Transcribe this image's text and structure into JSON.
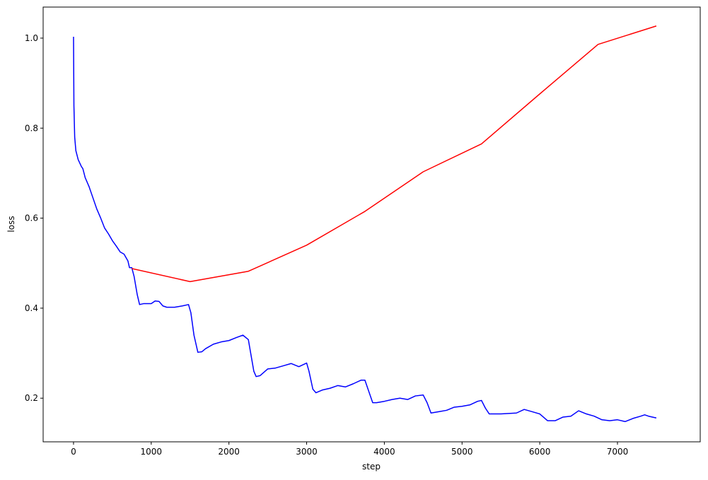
{
  "chart_data": {
    "type": "line",
    "xlabel": "step",
    "ylabel": "loss",
    "xlim": [
      -391,
      8065
    ],
    "ylim": [
      0.103,
      1.069
    ],
    "xticks": [
      0,
      1000,
      2000,
      3000,
      4000,
      5000,
      6000,
      7000
    ],
    "yticks": [
      0.2,
      0.4,
      0.6,
      0.8,
      {
        "value": 1,
        "label": "1.0"
      }
    ],
    "grid": false,
    "series": [
      {
        "color": "#0000ff",
        "x": [
          0,
          5,
          15,
          30,
          60,
          100,
          120,
          150,
          200,
          250,
          300,
          350,
          400,
          450,
          500,
          550,
          600,
          650,
          700,
          720,
          750,
          780,
          820,
          850,
          900,
          1000,
          1050,
          1100,
          1150,
          1200,
          1300,
          1400,
          1480,
          1510,
          1550,
          1600,
          1650,
          1700,
          1800,
          1900,
          2000,
          2100,
          2180,
          2250,
          2280,
          2320,
          2350,
          2400,
          2500,
          2600,
          2700,
          2800,
          2900,
          3000,
          3030,
          3080,
          3120,
          3200,
          3300,
          3400,
          3500,
          3600,
          3700,
          3750,
          3800,
          3850,
          3900,
          4000,
          4100,
          4200,
          4300,
          4400,
          4500,
          4550,
          4600,
          4700,
          4800,
          4900,
          5000,
          5100,
          5200,
          5250,
          5300,
          5350,
          5500,
          5700,
          5800,
          5900,
          6000,
          6100,
          6200,
          6300,
          6400,
          6500,
          6600,
          6700,
          6800,
          6900,
          7000,
          7100,
          7200,
          7300,
          7350,
          7400,
          7500
        ],
        "values": [
          1.003,
          0.85,
          0.78,
          0.75,
          0.73,
          0.715,
          0.71,
          0.69,
          0.67,
          0.645,
          0.62,
          0.6,
          0.578,
          0.565,
          0.55,
          0.538,
          0.525,
          0.52,
          0.505,
          0.49,
          0.49,
          0.47,
          0.43,
          0.408,
          0.41,
          0.41,
          0.416,
          0.415,
          0.405,
          0.402,
          0.402,
          0.405,
          0.408,
          0.39,
          0.34,
          0.302,
          0.303,
          0.31,
          0.32,
          0.325,
          0.328,
          0.335,
          0.34,
          0.33,
          0.3,
          0.26,
          0.248,
          0.25,
          0.265,
          0.267,
          0.272,
          0.277,
          0.27,
          0.278,
          0.26,
          0.22,
          0.212,
          0.218,
          0.222,
          0.228,
          0.225,
          0.232,
          0.24,
          0.24,
          0.215,
          0.19,
          0.19,
          0.193,
          0.197,
          0.2,
          0.197,
          0.205,
          0.207,
          0.19,
          0.167,
          0.17,
          0.173,
          0.18,
          0.182,
          0.185,
          0.193,
          0.195,
          0.178,
          0.165,
          0.165,
          0.167,
          0.175,
          0.17,
          0.165,
          0.15,
          0.15,
          0.158,
          0.16,
          0.172,
          0.165,
          0.16,
          0.152,
          0.15,
          0.152,
          0.148,
          0.155,
          0.16,
          0.163,
          0.16,
          0.156
        ]
      },
      {
        "color": "#ff0000",
        "x": [
          750,
          1500,
          2250,
          3000,
          3750,
          4500,
          5250,
          6000,
          6750,
          7500
        ],
        "values": [
          0.488,
          0.459,
          0.482,
          0.54,
          0.615,
          0.703,
          0.765,
          0.876,
          0.986,
          1.027
        ]
      }
    ]
  }
}
